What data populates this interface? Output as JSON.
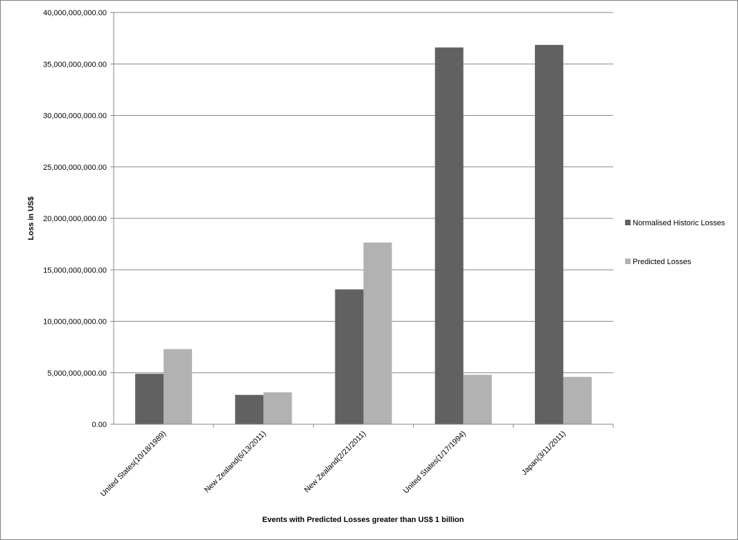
{
  "chart_data": {
    "type": "bar",
    "title": "",
    "xlabel": "Events with Predicted Losses greater than  US$ 1 billion",
    "ylabel": "Loss in US$",
    "ylim": [
      0,
      40000000000
    ],
    "y_ticks": [
      0,
      5000000000,
      10000000000,
      15000000000,
      20000000000,
      25000000000,
      30000000000,
      35000000000,
      40000000000
    ],
    "y_tick_labels": [
      "0.00",
      "5,000,000,000.00",
      "10,000,000,000.00",
      "15,000,000,000.00",
      "20,000,000,000.00",
      "25,000,000,000.00",
      "30,000,000,000.00",
      "35,000,000,000.00",
      "40,000,000,000.00"
    ],
    "categories": [
      "United States(10/18/1989)",
      "New Zealand(6/13/2011)",
      "New Zealand(2/21/2011)",
      "United States(1/17/1994)",
      "Japan(3/11/2011)"
    ],
    "series": [
      {
        "name": "Normalised Historic Losses",
        "color": "#616161",
        "values": [
          4900000000,
          2850000000,
          13100000000,
          36600000000,
          36850000000
        ]
      },
      {
        "name": "Predicted Losses",
        "color": "#b2b2b2",
        "values": [
          7300000000,
          3100000000,
          17650000000,
          4800000000,
          4600000000
        ]
      }
    ],
    "grid": true,
    "gridline_color": "#868686",
    "legend_position": "right"
  }
}
